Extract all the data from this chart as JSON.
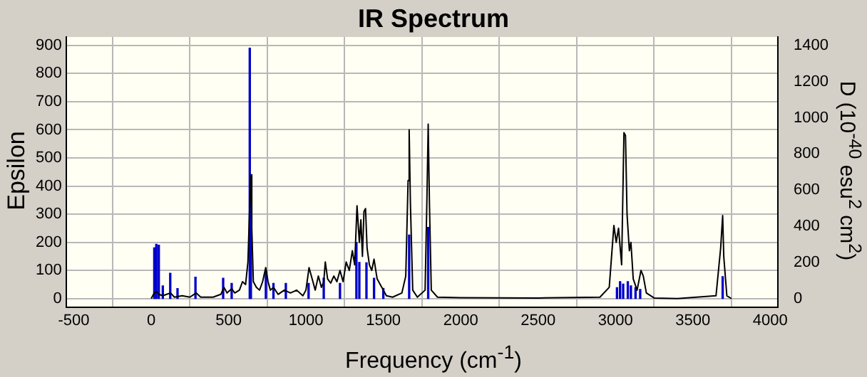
{
  "chart_data": {
    "type": "line",
    "title": "IR Spectrum",
    "xlabel": "Frequency (cm$^{-1}$)",
    "ylabel": "Epsilon",
    "y2label": "D (10$^{-40}$ esu$^{2}$ cm$^{2}$)",
    "xlim": [
      -550,
      4050
    ],
    "xticks": [
      -500,
      0,
      500,
      1000,
      1500,
      2000,
      2500,
      3000,
      3500,
      4000
    ],
    "ylim": [
      -30,
      930
    ],
    "yticks": [
      0,
      100,
      200,
      300,
      400,
      500,
      600,
      700,
      800,
      900
    ],
    "y2lim": [
      -47,
      1447
    ],
    "y2ticks": [
      0,
      200,
      400,
      600,
      800,
      1000,
      1200,
      1400
    ],
    "grid": true,
    "legend": false,
    "marker": "none",
    "series": [
      {
        "type": "bar",
        "axis": "y2",
        "color": "#0000cc",
        "x": [
          20,
          33,
          49,
          75,
          123,
          170,
          286,
          465,
          520,
          637,
          644,
          741,
          790,
          870,
          1017,
          1115,
          1220,
          1326,
          1345,
          1391,
          1440,
          1500,
          1667,
          1790,
          3010,
          3030,
          3050,
          3080,
          3100,
          3130,
          3160,
          3693
        ],
        "values": [
          280,
          300,
          295,
          70,
          140,
          55,
          118,
          112,
          84,
          1385,
          394,
          155,
          84,
          84,
          84,
          112,
          84,
          310,
          200,
          198,
          112,
          56,
          351,
          394,
          60,
          93,
          80,
          93,
          70,
          60,
          50,
          121
        ]
      },
      {
        "axis": "y",
        "color": "#000000",
        "x": [
          0,
          20,
          35,
          50,
          75,
          100,
          125,
          150,
          200,
          250,
          290,
          320,
          400,
          450,
          470,
          490,
          520,
          540,
          570,
          590,
          610,
          625,
          637,
          645,
          650,
          660,
          680,
          700,
          720,
          740,
          755,
          770,
          790,
          820,
          860,
          900,
          940,
          980,
          1000,
          1020,
          1040,
          1060,
          1080,
          1100,
          1115,
          1125,
          1140,
          1160,
          1180,
          1200,
          1220,
          1240,
          1260,
          1280,
          1300,
          1315,
          1330,
          1345,
          1355,
          1365,
          1375,
          1385,
          1395,
          1410,
          1425,
          1440,
          1460,
          1480,
          1500,
          1520,
          1560,
          1620,
          1645,
          1660,
          1667,
          1675,
          1690,
          1720,
          1770,
          1782,
          1790,
          1798,
          1810,
          1850,
          2000,
          2500,
          2900,
          2960,
          2990,
          3005,
          3020,
          3040,
          3055,
          3065,
          3075,
          3090,
          3100,
          3115,
          3140,
          3165,
          3180,
          3200,
          3250,
          3400,
          3650,
          3680,
          3693,
          3700,
          3720,
          3750
        ],
        "values": [
          0,
          20,
          25,
          15,
          10,
          15,
          20,
          5,
          10,
          5,
          20,
          5,
          5,
          15,
          40,
          20,
          35,
          20,
          30,
          60,
          50,
          130,
          340,
          440,
          250,
          60,
          40,
          30,
          60,
          110,
          60,
          30,
          40,
          15,
          30,
          20,
          30,
          10,
          30,
          110,
          70,
          30,
          80,
          40,
          60,
          130,
          70,
          55,
          80,
          60,
          100,
          60,
          130,
          100,
          170,
          120,
          330,
          200,
          280,
          150,
          310,
          320,
          180,
          120,
          100,
          140,
          70,
          50,
          30,
          10,
          5,
          20,
          80,
          420,
          600,
          340,
          30,
          5,
          30,
          360,
          620,
          340,
          30,
          5,
          3,
          2,
          5,
          40,
          260,
          200,
          250,
          120,
          590,
          580,
          300,
          170,
          200,
          70,
          30,
          100,
          80,
          20,
          2,
          0,
          10,
          180,
          295,
          150,
          10,
          0
        ]
      }
    ]
  }
}
